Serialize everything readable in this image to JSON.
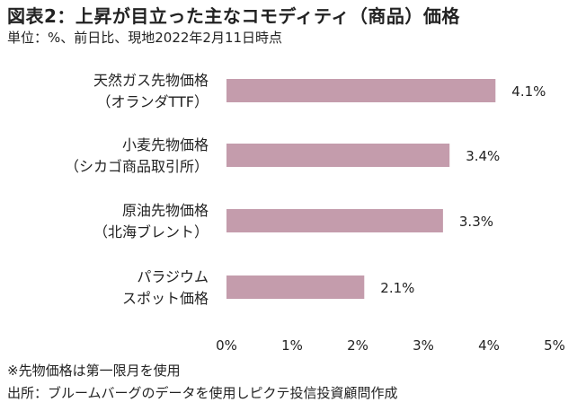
{
  "chart_data": {
    "type": "bar",
    "orientation": "horizontal",
    "title": "図表2：上昇が目立った主なコモディティ（商品）価格",
    "subtitle": "単位：%、前日比、現地2022年2月11日時点",
    "categories": [
      [
        "天然ガス先物価格",
        "（オランダTTF）"
      ],
      [
        "小麦先物価格",
        "（シカゴ商品取引所）"
      ],
      [
        "原油先物価格",
        "（北海ブレント）"
      ],
      [
        "パラジウム",
        "スポット価格"
      ]
    ],
    "values": [
      4.1,
      3.4,
      3.3,
      2.1
    ],
    "value_labels": [
      "4.1%",
      "3.4%",
      "3.3%",
      "2.1%"
    ],
    "xlim": [
      0,
      5
    ],
    "x_ticks": [
      0,
      1,
      2,
      3,
      4,
      5
    ],
    "x_tick_labels": [
      "0%",
      "1%",
      "2%",
      "3%",
      "4%",
      "5%"
    ],
    "grid": false,
    "bar_color": "#c49cac"
  },
  "notes": {
    "note1": "※先物価格は第一限月を使用",
    "source": "出所：ブルームバーグのデータを使用しピクテ投信投資顧問作成"
  }
}
